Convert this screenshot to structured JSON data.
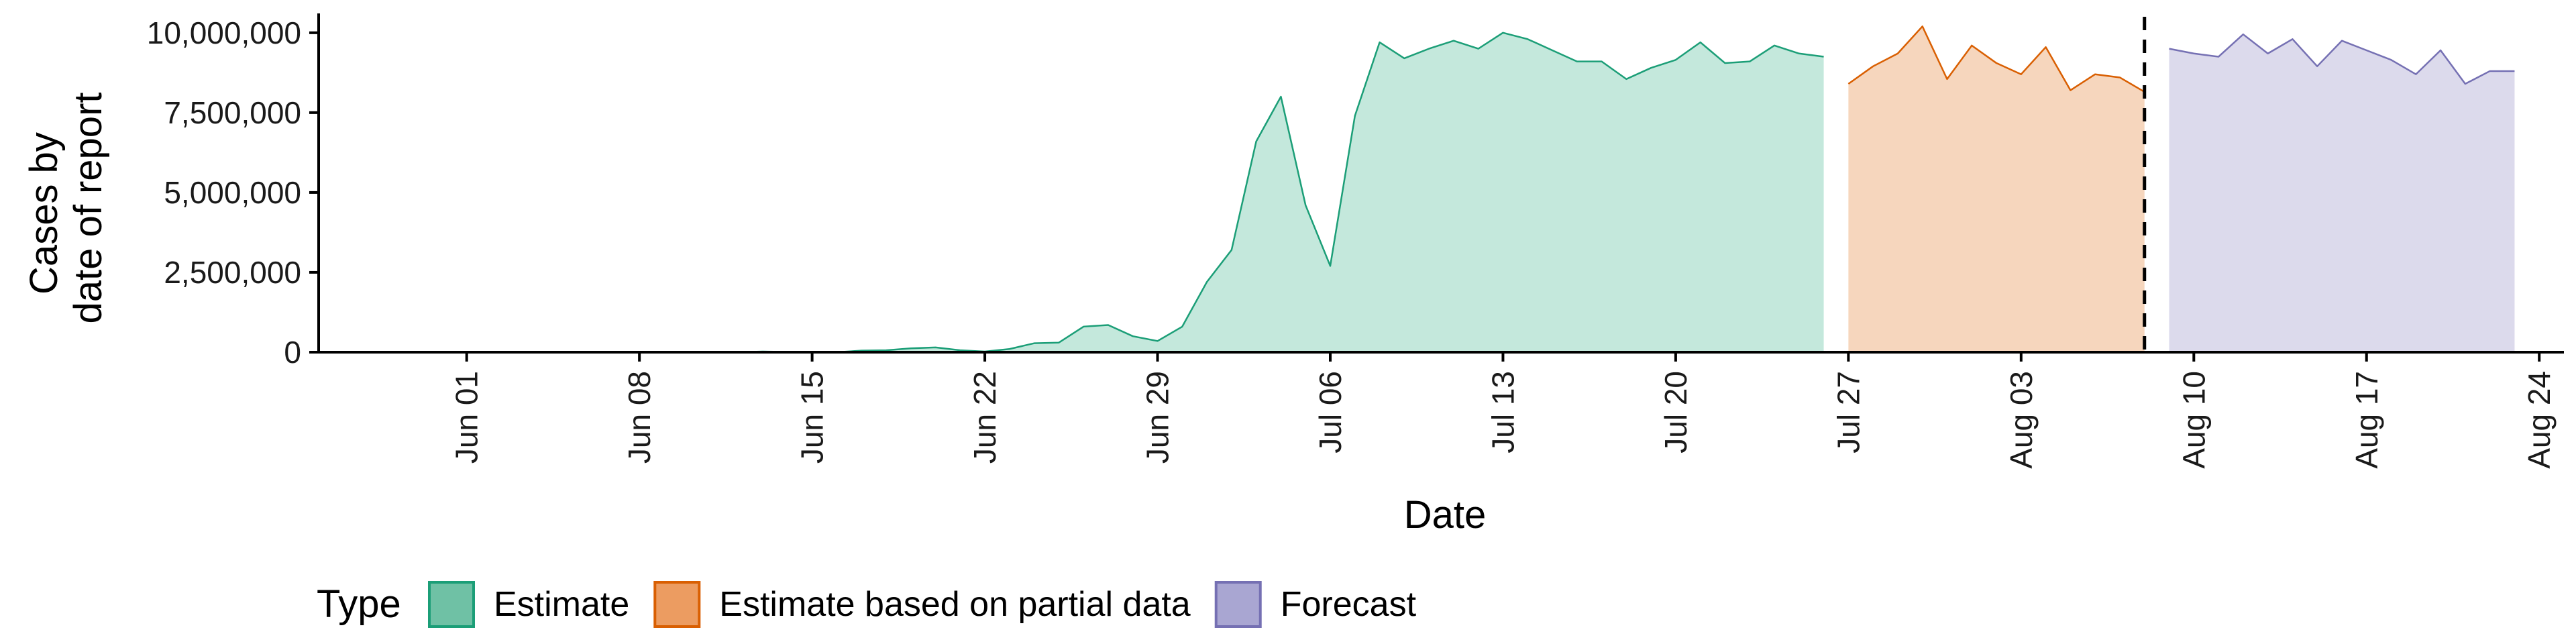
{
  "chart_data": {
    "type": "area",
    "xlabel": "Date",
    "ylabel": [
      "Cases by",
      "date of report"
    ],
    "x_range": [
      "2020-05-26",
      "2020-08-25"
    ],
    "ylim": [
      0,
      10500000
    ],
    "y_ticks": [
      0,
      2500000,
      5000000,
      7500000,
      10000000
    ],
    "y_tick_labels": [
      "0",
      "2,500,000",
      "5,000,000",
      "7,500,000",
      "10,000,000"
    ],
    "x_ticks": [
      "2020-06-01",
      "2020-06-08",
      "2020-06-15",
      "2020-06-22",
      "2020-06-29",
      "2020-07-06",
      "2020-07-13",
      "2020-07-20",
      "2020-07-27",
      "2020-08-03",
      "2020-08-10",
      "2020-08-17",
      "2020-08-24"
    ],
    "x_tick_labels": [
      "Jun 01",
      "Jun 08",
      "Jun 15",
      "Jun 22",
      "Jun 29",
      "Jul 06",
      "Jul 13",
      "Jul 20",
      "Jul 27",
      "Aug 03",
      "Aug 10",
      "Aug 17",
      "Aug 24"
    ],
    "vline_date": "2020-08-08",
    "legend": {
      "title": "Type",
      "placement": "bottom"
    },
    "series": [
      {
        "name": "Estimate",
        "fill": "#c4e8dc",
        "stroke": "#1b9e77",
        "swatch": "#6fc1a5",
        "x": [
          "2020-05-29",
          "2020-05-30",
          "2020-05-31",
          "2020-06-01",
          "2020-06-02",
          "2020-06-03",
          "2020-06-04",
          "2020-06-05",
          "2020-06-06",
          "2020-06-07",
          "2020-06-08",
          "2020-06-09",
          "2020-06-10",
          "2020-06-11",
          "2020-06-12",
          "2020-06-13",
          "2020-06-14",
          "2020-06-15",
          "2020-06-16",
          "2020-06-17",
          "2020-06-18",
          "2020-06-19",
          "2020-06-20",
          "2020-06-21",
          "2020-06-22",
          "2020-06-23",
          "2020-06-24",
          "2020-06-25",
          "2020-06-26",
          "2020-06-27",
          "2020-06-28",
          "2020-06-29",
          "2020-06-30",
          "2020-07-01",
          "2020-07-02",
          "2020-07-03",
          "2020-07-04",
          "2020-07-05",
          "2020-07-06",
          "2020-07-07",
          "2020-07-08",
          "2020-07-09",
          "2020-07-10",
          "2020-07-11",
          "2020-07-12",
          "2020-07-13",
          "2020-07-14",
          "2020-07-15",
          "2020-07-16",
          "2020-07-17",
          "2020-07-18",
          "2020-07-19",
          "2020-07-20",
          "2020-07-21",
          "2020-07-22",
          "2020-07-23",
          "2020-07-24",
          "2020-07-25",
          "2020-07-26"
        ],
        "y": [
          0,
          0,
          0,
          0,
          0,
          0,
          0,
          0,
          0,
          0,
          0,
          0,
          0,
          0,
          0,
          20000,
          10000,
          0,
          0,
          50000,
          60000,
          120000,
          150000,
          60000,
          20000,
          100000,
          280000,
          300000,
          800000,
          850000,
          500000,
          350000,
          800000,
          2200000,
          3200000,
          6600000,
          8000000,
          4600000,
          2700000,
          7400000,
          9700000,
          9200000,
          9500000,
          9750000,
          9500000,
          10000000,
          9800000,
          9450000,
          9100000,
          9100000,
          8550000,
          8900000,
          9150000,
          9700000,
          9050000,
          9100000,
          9600000,
          9350000,
          9250000
        ]
      },
      {
        "name": "Estimate based on partial data",
        "fill": "#f6d6bd",
        "stroke": "#d95f02",
        "swatch": "#ec9c61",
        "x": [
          "2020-07-27",
          "2020-07-28",
          "2020-07-29",
          "2020-07-30",
          "2020-07-31",
          "2020-08-01",
          "2020-08-02",
          "2020-08-03",
          "2020-08-04",
          "2020-08-05",
          "2020-08-06",
          "2020-08-07",
          "2020-08-08"
        ],
        "y": [
          8400000,
          8950000,
          9350000,
          10200000,
          8550000,
          9600000,
          9050000,
          8700000,
          9550000,
          8200000,
          8700000,
          8600000,
          8150000
        ]
      },
      {
        "name": "Forecast",
        "fill": "#dcdaec",
        "stroke": "#7570b3",
        "swatch": "#a9a6d2",
        "x": [
          "2020-08-09",
          "2020-08-10",
          "2020-08-11",
          "2020-08-12",
          "2020-08-13",
          "2020-08-14",
          "2020-08-15",
          "2020-08-16",
          "2020-08-17",
          "2020-08-18",
          "2020-08-19",
          "2020-08-20",
          "2020-08-21",
          "2020-08-22",
          "2020-08-23"
        ],
        "y": [
          9500000,
          9350000,
          9250000,
          9950000,
          9350000,
          9800000,
          8950000,
          9750000,
          9450000,
          9150000,
          8700000,
          9450000,
          8400000,
          8800000,
          8800000
        ]
      }
    ]
  }
}
